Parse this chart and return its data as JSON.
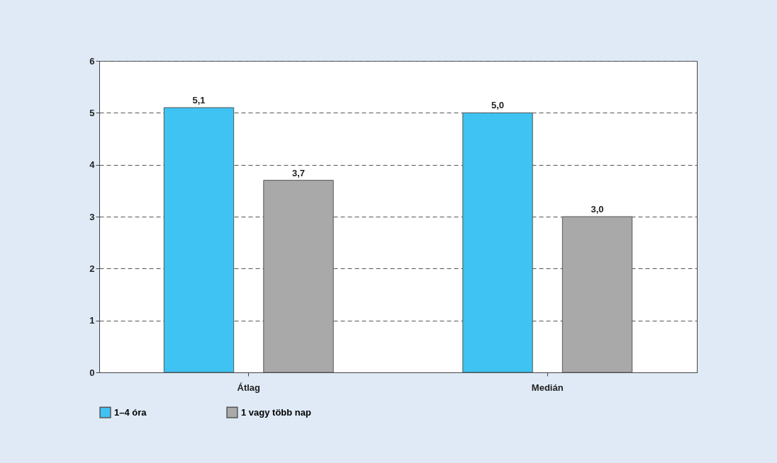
{
  "chart_data": {
    "type": "bar",
    "categories": [
      "Átlag",
      "Medián"
    ],
    "series": [
      {
        "name": "1–4 óra",
        "color": "#3ec3f2",
        "values": [
          5.1,
          5.0
        ],
        "value_labels": [
          "5,1",
          "5,0"
        ]
      },
      {
        "name": "1 vagy több nap",
        "color": "#a9a9a9",
        "values": [
          3.7,
          3.0
        ],
        "value_labels": [
          "3,7",
          "3,0"
        ]
      }
    ],
    "ylim": [
      0,
      6
    ],
    "yticks": [
      0,
      1,
      2,
      3,
      4,
      5,
      6
    ],
    "grid": "y",
    "legend": "bottom"
  }
}
